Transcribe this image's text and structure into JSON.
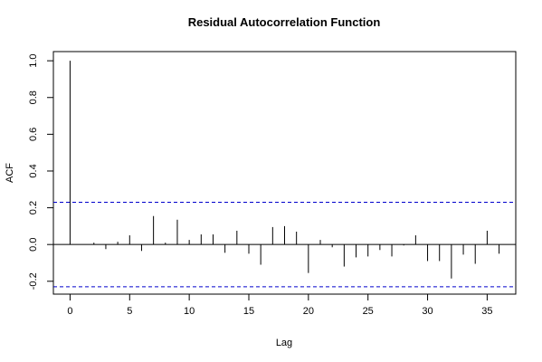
{
  "chart_data": {
    "type": "bar",
    "title": "Residual Autocorrelation Function",
    "xlabel": "Lag",
    "ylabel": "ACF",
    "xlim": [
      -1.4,
      37.4
    ],
    "ylim": [
      -0.27,
      1.05
    ],
    "x_ticks": [
      0,
      5,
      10,
      15,
      20,
      25,
      30,
      35
    ],
    "y_ticks": [
      -0.2,
      0.0,
      0.2,
      0.4,
      0.6,
      0.8,
      1.0
    ],
    "y_tick_labels": [
      "-0.2",
      "0.0",
      "0.2",
      "0.4",
      "0.6",
      "0.8",
      "1.0"
    ],
    "confidence_band": [
      0.23,
      -0.23
    ],
    "band_color": "#0000cc",
    "lags": [
      0,
      1,
      2,
      3,
      4,
      5,
      6,
      7,
      8,
      9,
      10,
      11,
      12,
      13,
      14,
      15,
      16,
      17,
      18,
      19,
      20,
      21,
      22,
      23,
      24,
      25,
      26,
      27,
      28,
      29,
      30,
      31,
      32,
      33,
      34,
      35,
      36
    ],
    "values": [
      1.0,
      0.0,
      0.01,
      -0.025,
      0.015,
      0.05,
      -0.035,
      0.155,
      0.01,
      0.135,
      0.025,
      0.055,
      0.055,
      -0.045,
      0.075,
      -0.05,
      -0.11,
      0.095,
      0.1,
      0.07,
      -0.155,
      0.025,
      -0.015,
      -0.12,
      -0.07,
      -0.065,
      -0.03,
      -0.065,
      -0.005,
      0.05,
      -0.09,
      -0.09,
      -0.185,
      -0.055,
      -0.105,
      0.075,
      -0.05
    ]
  }
}
